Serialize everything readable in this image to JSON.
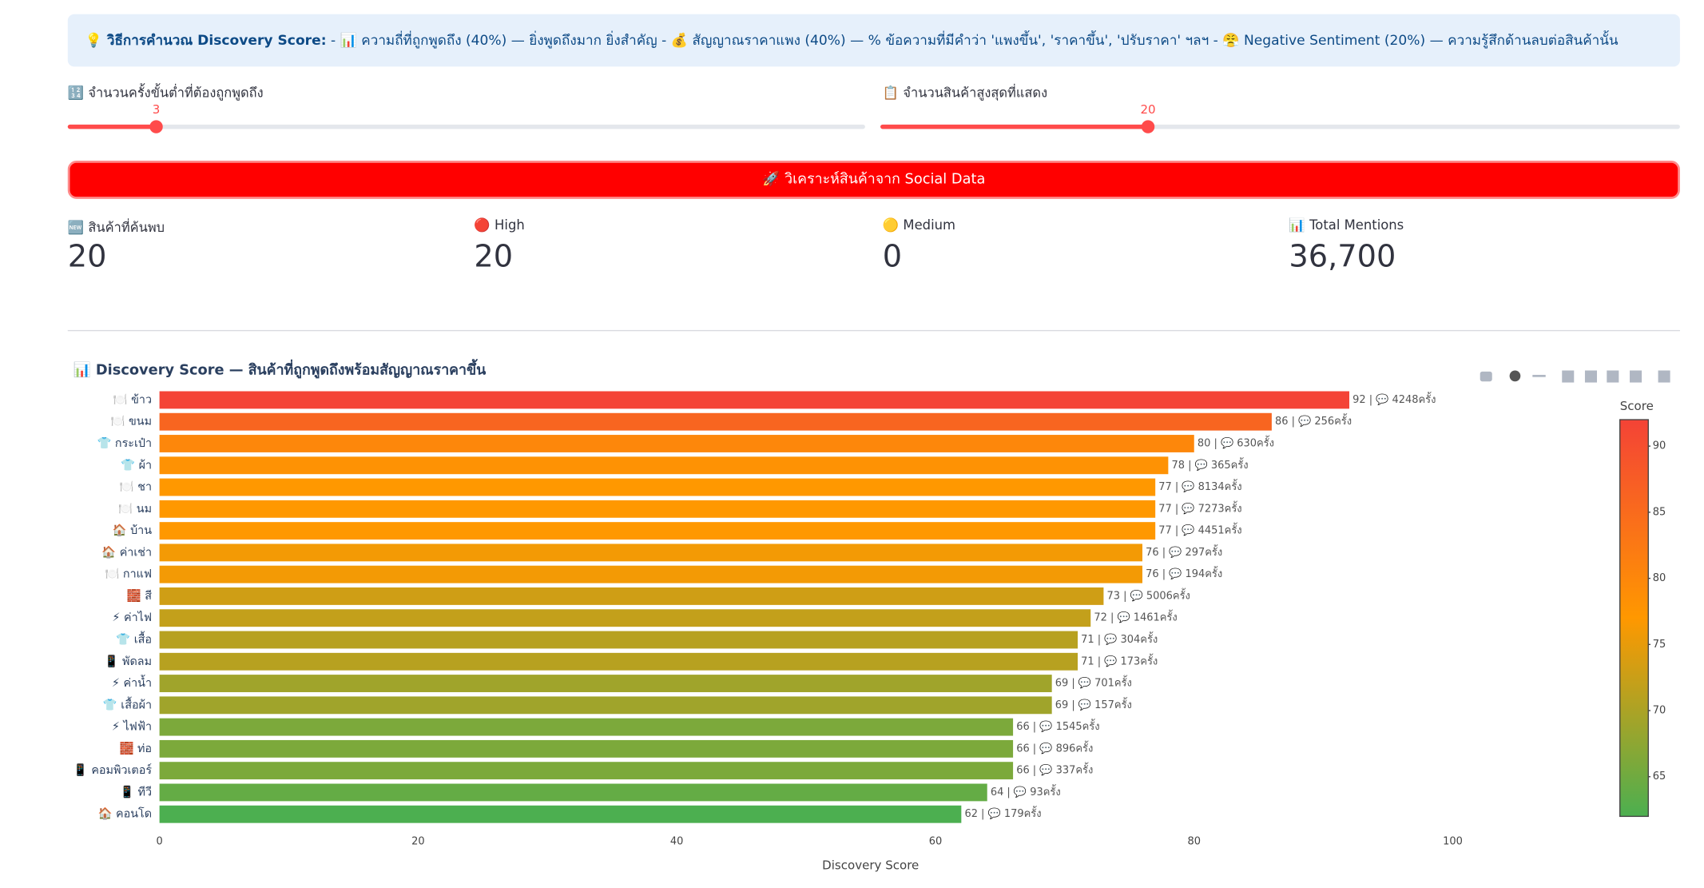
{
  "banner": {
    "title": "💡 วิธีการคำนวณ Discovery Score:",
    "text": "- 📊 ความถี่ที่ถูกพูดถึง (40%) — ยิ่งพูดถึงมาก ยิ่งสำคัญ - 💰 สัญญาณราคาแพง (40%) — % ข้อความที่มีคำว่า 'แพงขึ้น', 'ราคาขึ้น', 'ปรับราคา' ฯลฯ - 😤 Negative Sentiment (20%) — ความรู้สึกด้านลบต่อสินค้านั้น"
  },
  "sliders": [
    {
      "label": "🔢 จำนวนครั้งขั้นต่ำที่ต้องถูกพูดถึง",
      "value": 3
    },
    {
      "label": "📋 จำนวนสินค้าสูงสุดที่แสดง",
      "value": 20
    }
  ],
  "button": "🚀 วิเคราะห์สินค้าจาก Social Data",
  "metrics": [
    {
      "label": "🆕 สินค้าที่ค้นพบ",
      "value": 20
    },
    {
      "label": "🔴 High",
      "value": 20
    },
    {
      "label": "🟡 Medium",
      "value": 0
    },
    {
      "label": "📊 Total Mentions",
      "value": "36,700"
    }
  ],
  "chart_data": {
    "type": "hbar",
    "title": "📊 Discovery Score — สินค้าที่ถูกพูดถึงพร้อมสัญญาณราคาขึ้น",
    "x_label": "Discovery Score",
    "categories": [
      "🍽️ ข้าว",
      "🍽️ ขนม",
      "👕 กระเป๋า",
      "👕 ผ้า",
      "🍽️ ชา",
      "🍽️ นม",
      "🏠 บ้าน",
      "🏠 ค่าเช่า",
      "🍽️ กาแฟ",
      "🧱 สี",
      "⚡ ค่าไฟ",
      "👕 เสื้อ",
      "📱 พัดลม",
      "⚡ ค่าน้ำ",
      "👕 เสื้อผ้า",
      "⚡ ไฟฟ้า",
      "🧱 ท่อ",
      "📱 คอมพิวเตอร์",
      "📱 ทีวี",
      "🏠 คอนโด"
    ],
    "values": [
      92,
      86,
      80,
      78,
      77,
      77,
      77,
      76,
      76,
      73,
      72,
      71,
      71,
      69,
      69,
      66,
      66,
      66,
      64,
      62
    ],
    "value_labels": [
      "92 | 💬 4248ครั้ง",
      "86 | 💬 256ครั้ง",
      "80 | 💬 630ครั้ง",
      "78 | 💬 365ครั้ง",
      "77 | 💬 8134ครั้ง",
      "77 | 💬 7273ครั้ง",
      "77 | 💬 4451ครั้ง",
      "76 | 💬 297ครั้ง",
      "76 | 💬 194ครั้ง",
      "73 | 💬 5006ครั้ง",
      "72 | 💬 1461ครั้ง",
      "71 | 💬 304ครั้ง",
      "71 | 💬 173ครั้ง",
      "69 | 💬 701ครั้ง",
      "69 | 💬 157ครั้ง",
      "66 | 💬 1545ครั้ง",
      "66 | 💬 896ครั้ง",
      "66 | 💬 337ครั้ง",
      "64 | 💬 93ครั้ง",
      "62 | 💬 179ครั้ง"
    ],
    "xlim": [
      0,
      112
    ],
    "xticks": [
      0,
      20,
      40,
      60,
      80,
      100
    ],
    "colorbar": {
      "title": "Score",
      "range": [
        62,
        92
      ],
      "ticks": [
        65,
        70,
        75,
        80,
        85,
        90
      ],
      "colors": [
        "#4caf50",
        "#ff9800",
        "#f44336"
      ]
    }
  }
}
